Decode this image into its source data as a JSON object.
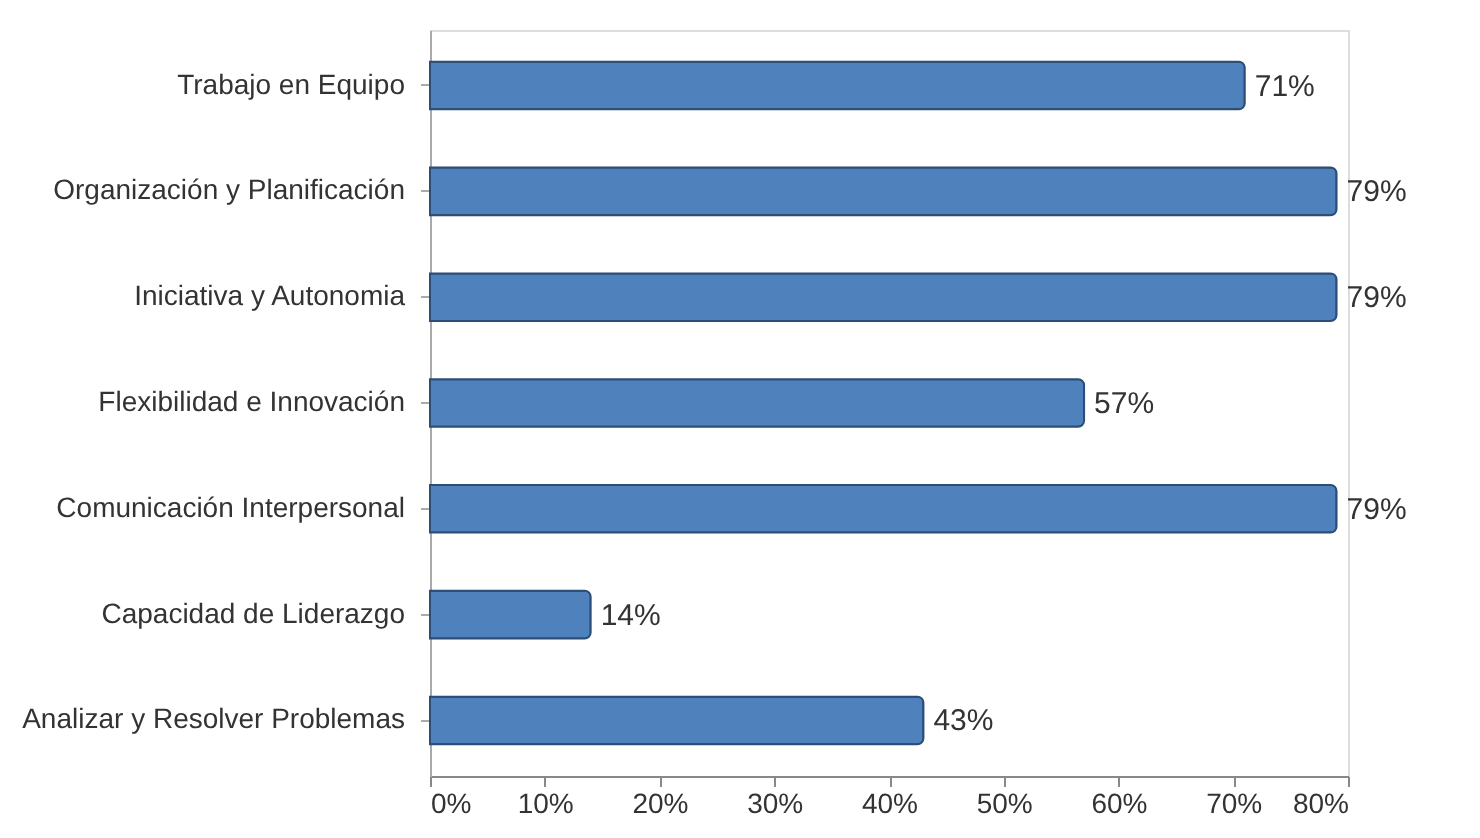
{
  "chart_data": {
    "type": "bar",
    "orientation": "horizontal",
    "categories": [
      "Trabajo en Equipo",
      "Organización y Planificación",
      "Iniciativa y Autonomia",
      "Flexibilidad e Innovación",
      "Comunicación Interpersonal",
      "Capacidad de Liderazgo",
      "Analizar y Resolver Problemas"
    ],
    "values": [
      71,
      79,
      79,
      57,
      79,
      14,
      43
    ],
    "value_labels": [
      "71%",
      "79%",
      "79%",
      "57%",
      "79%",
      "14%",
      "43%"
    ],
    "color": "#4f81bd",
    "xlim": [
      0,
      80
    ],
    "xticks": [
      {
        "value": 0,
        "label": "0%"
      },
      {
        "value": 10,
        "label": "10%"
      },
      {
        "value": 20,
        "label": "20%"
      },
      {
        "value": 30,
        "label": "30%"
      },
      {
        "value": 40,
        "label": "40%"
      },
      {
        "value": 50,
        "label": "50%"
      },
      {
        "value": 60,
        "label": "60%"
      },
      {
        "value": 70,
        "label": "70%"
      },
      {
        "value": 80,
        "label": "80%"
      }
    ],
    "grid": false
  }
}
